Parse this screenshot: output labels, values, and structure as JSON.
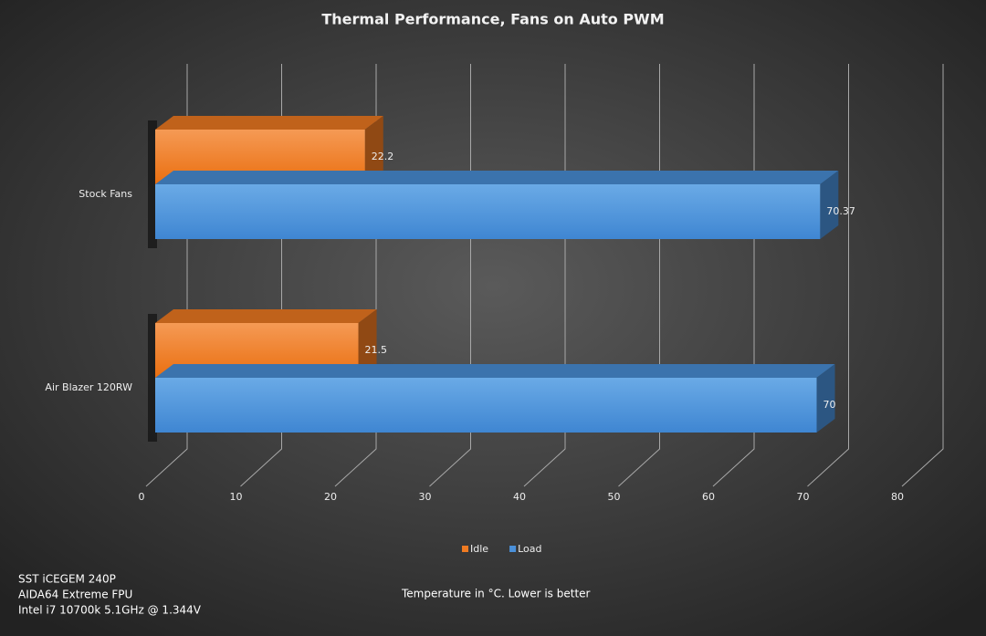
{
  "chart_data": {
    "type": "bar",
    "orientation": "horizontal",
    "title": "Thermal  Performance,  Fans  on  Auto  PWM",
    "categories": [
      "Stock Fans",
      "Air Blazer 120RW"
    ],
    "series": [
      {
        "name": "Idle",
        "color": "#f07b22",
        "values": [
          22.2,
          21.5
        ]
      },
      {
        "name": "Load",
        "color": "#4a90d9",
        "values": [
          70.37,
          70
        ]
      }
    ],
    "xlim": [
      0,
      80
    ],
    "xticks": [
      0,
      10,
      20,
      30,
      40,
      50,
      60,
      70,
      80
    ],
    "xlabel": "Temperature in °C. Lower is better",
    "notes": [
      "SST iCEGEM 240P",
      "AIDA64 Extreme FPU",
      "Intel i7 10700k  5.1GHz @ 1.344V"
    ],
    "grid": true,
    "legend": "bottom"
  }
}
